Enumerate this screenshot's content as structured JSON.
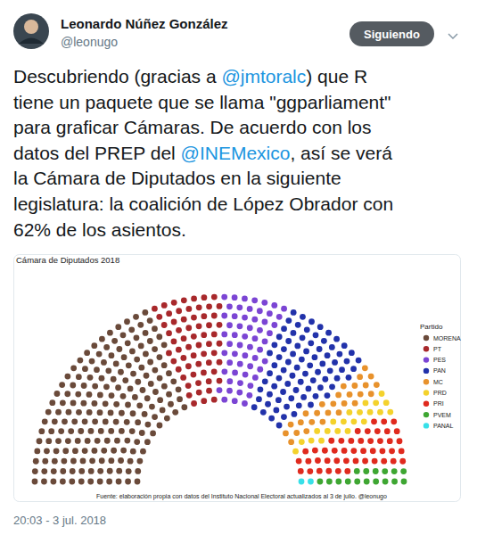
{
  "tweet": {
    "name": "Leonardo Núñez González",
    "handle": "@leonugo",
    "button": "Siguiendo",
    "text": [
      "Descubriendo (gracias a @jmtoralc) que R",
      "tiene un paquete que se llama \"ggparliament\"",
      "para graficar Cámaras. De acuerdo con los",
      "datos del PREP del @INEMexico, así se verá",
      "la Cámara de Diputados en la siguiente",
      "legislatura: la coalición de López Obrador con",
      "62% de los asientos."
    ],
    "timestamp": "20:03 - 3 jul. 2018"
  },
  "chart_data": {
    "type": "parliament",
    "title": "Cámara de Diputados 2018",
    "legend_title": "Partido",
    "categories": [
      "MORENA",
      "PT",
      "PES",
      "PAN",
      "MC",
      "PRD",
      "PRI",
      "PVEM",
      "PANAL"
    ],
    "values": [
      191,
      61,
      56,
      81,
      27,
      21,
      45,
      16,
      2
    ],
    "colors": [
      "#6a4a3a",
      "#a8282b",
      "#7b45d4",
      "#2232aa",
      "#e8922c",
      "#f4d22c",
      "#e02a1e",
      "#3ea632",
      "#38e0e8"
    ],
    "legend": "right",
    "caption": "Fuente: elaboración propia con datos del Instituto Nacional Electoral actualizados al 3 de julio. @leonugo"
  }
}
